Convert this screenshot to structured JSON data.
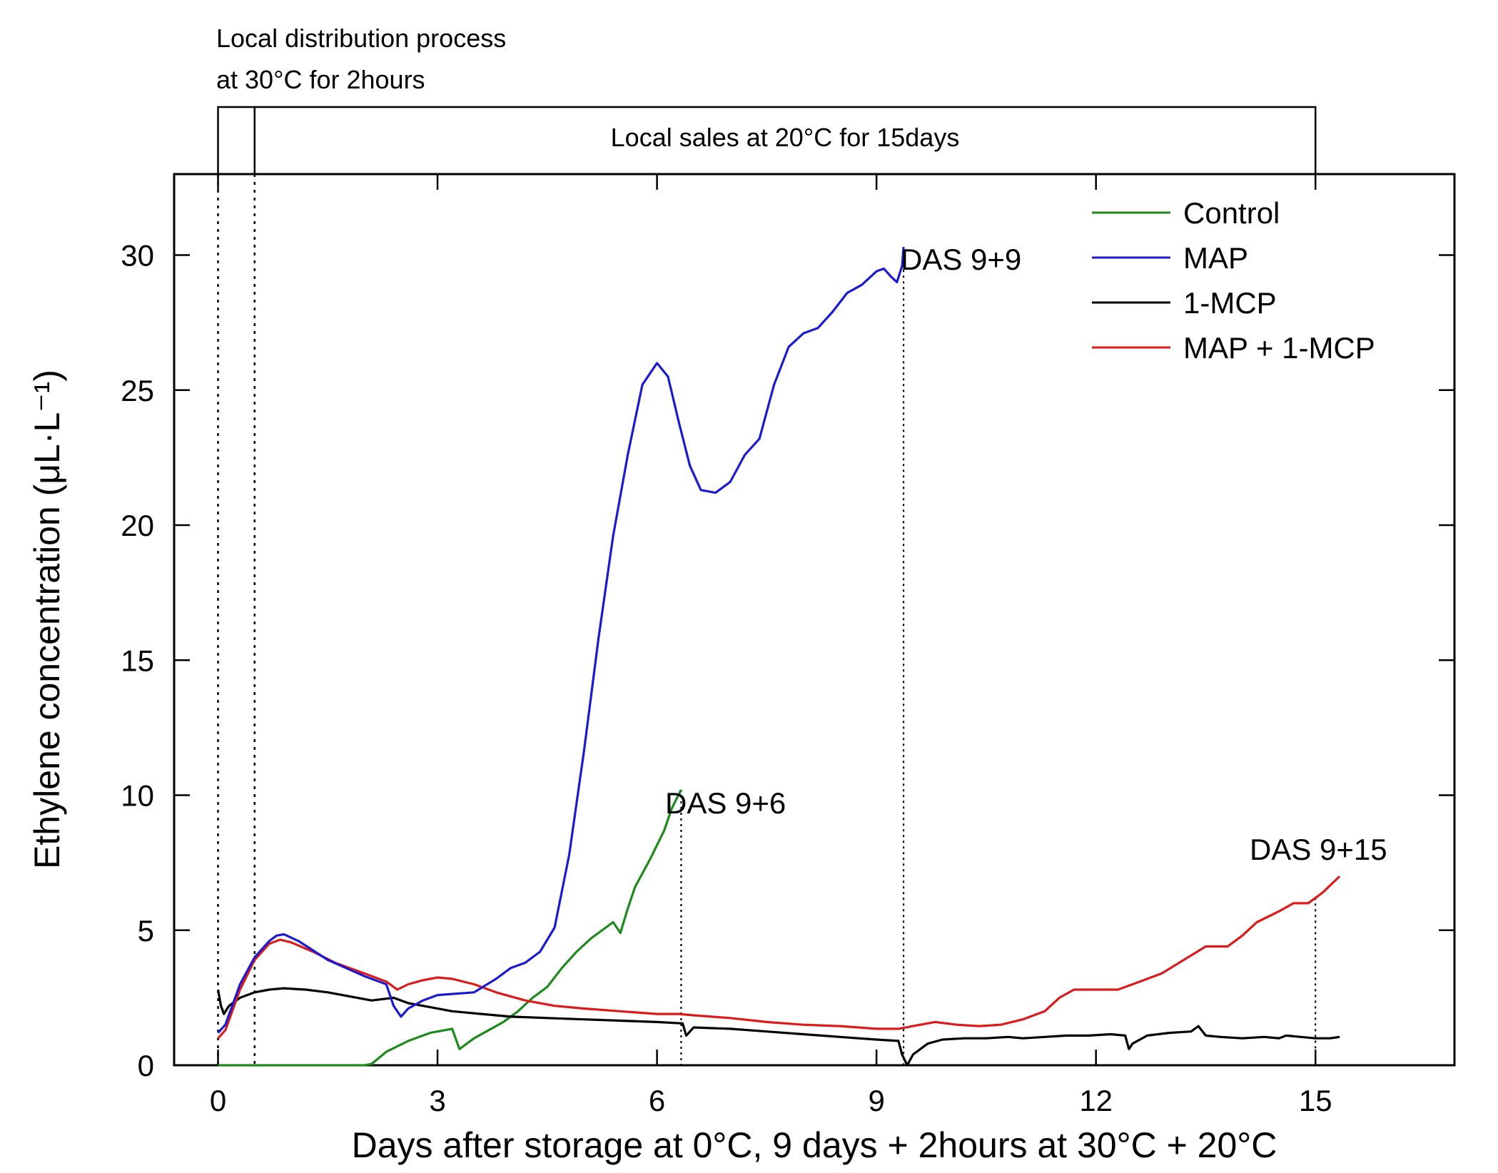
{
  "chart_data": {
    "type": "line",
    "title": "",
    "xlabel": "Days after storage at 0°C, 9 days + 2hours at 30°C + 20°C",
    "ylabel": "Ethylene concentration (μL·L⁻¹)",
    "xlim": [
      -0.6,
      16.9
    ],
    "ylim": [
      0,
      33
    ],
    "x_ticks": [
      0,
      3,
      6,
      9,
      12,
      15
    ],
    "x_tick_labels": [
      "0",
      "3",
      "6",
      "9",
      "12",
      "15"
    ],
    "y_ticks": [
      0,
      5,
      10,
      15,
      20,
      25,
      30
    ],
    "y_tick_labels": [
      "0",
      "5",
      "10",
      "15",
      "20",
      "25",
      "30"
    ],
    "legend": {
      "position": "top-right",
      "entries": [
        "Control",
        "MAP",
        "1-MCP",
        "MAP + 1-MCP"
      ]
    },
    "series": [
      {
        "name": "Control",
        "color": "#1e8a1e",
        "x": [
          0,
          0.5,
          1.0,
          1.5,
          2.0,
          2.1,
          2.3,
          2.6,
          2.9,
          3.2,
          3.3,
          3.4,
          3.5,
          3.7,
          3.9,
          4.1,
          4.3,
          4.5,
          4.7,
          4.9,
          5.1,
          5.3,
          5.4,
          5.5,
          5.6,
          5.7,
          5.9,
          6.1,
          6.2,
          6.33
        ],
        "y": [
          0,
          0,
          0,
          0,
          0,
          0.05,
          0.5,
          0.9,
          1.2,
          1.35,
          0.6,
          0.8,
          1.0,
          1.3,
          1.6,
          2.0,
          2.5,
          2.9,
          3.6,
          4.2,
          4.7,
          5.1,
          5.3,
          4.9,
          5.8,
          6.6,
          7.6,
          8.7,
          9.5,
          10.2
        ]
      },
      {
        "name": "MAP",
        "color": "#1a1ad2",
        "x": [
          0,
          0.1,
          0.3,
          0.5,
          0.7,
          0.8,
          0.9,
          1.1,
          1.5,
          2.0,
          2.3,
          2.4,
          2.5,
          2.6,
          2.8,
          3.0,
          3.5,
          3.8,
          4.0,
          4.2,
          4.4,
          4.6,
          4.8,
          5.0,
          5.2,
          5.4,
          5.6,
          5.8,
          6.0,
          6.15,
          6.3,
          6.45,
          6.6,
          6.8,
          7.0,
          7.2,
          7.4,
          7.6,
          7.8,
          8.0,
          8.2,
          8.4,
          8.6,
          8.8,
          9.0,
          9.1,
          9.2,
          9.28,
          9.35,
          9.37
        ],
        "y": [
          1.2,
          1.5,
          3.0,
          4.0,
          4.6,
          4.8,
          4.85,
          4.6,
          3.9,
          3.3,
          3.0,
          2.2,
          1.8,
          2.1,
          2.4,
          2.6,
          2.7,
          3.2,
          3.6,
          3.8,
          4.2,
          5.1,
          7.8,
          11.6,
          15.8,
          19.6,
          22.6,
          25.2,
          26.0,
          25.5,
          23.8,
          22.2,
          21.3,
          21.2,
          21.6,
          22.6,
          23.2,
          25.2,
          26.6,
          27.1,
          27.3,
          27.9,
          28.6,
          28.9,
          29.4,
          29.5,
          29.2,
          29.0,
          29.6,
          30.3
        ]
      },
      {
        "name": "1-MCP",
        "color": "#000000",
        "x": [
          0,
          0.04,
          0.08,
          0.15,
          0.3,
          0.5,
          0.7,
          0.9,
          1.2,
          1.5,
          1.8,
          2.1,
          2.4,
          2.6,
          2.9,
          3.2,
          3.6,
          4.0,
          4.5,
          5.0,
          5.5,
          6.0,
          6.35,
          6.4,
          6.5,
          7.0,
          7.5,
          8.0,
          8.5,
          9.0,
          9.3,
          9.35,
          9.42,
          9.5,
          9.7,
          9.9,
          10.2,
          10.5,
          10.8,
          11.0,
          11.3,
          11.6,
          11.9,
          12.2,
          12.4,
          12.45,
          12.5,
          12.7,
          13.0,
          13.3,
          13.4,
          13.5,
          13.7,
          14.0,
          14.3,
          14.5,
          14.6,
          14.8,
          15.0,
          15.2,
          15.33
        ],
        "y": [
          2.8,
          2.2,
          1.9,
          2.2,
          2.5,
          2.7,
          2.8,
          2.85,
          2.8,
          2.7,
          2.55,
          2.4,
          2.5,
          2.3,
          2.15,
          2.0,
          1.9,
          1.8,
          1.75,
          1.7,
          1.65,
          1.6,
          1.55,
          1.1,
          1.4,
          1.35,
          1.25,
          1.15,
          1.05,
          0.95,
          0.9,
          0.4,
          0.0,
          0.4,
          0.8,
          0.95,
          1.0,
          1.0,
          1.05,
          1.0,
          1.05,
          1.1,
          1.1,
          1.15,
          1.1,
          0.6,
          0.8,
          1.1,
          1.2,
          1.25,
          1.45,
          1.1,
          1.05,
          1.0,
          1.05,
          1.0,
          1.1,
          1.05,
          1.0,
          1.0,
          1.05
        ]
      },
      {
        "name": "MAP + 1-MCP",
        "color": "#dd1a1a",
        "x": [
          0,
          0.1,
          0.3,
          0.5,
          0.7,
          0.85,
          1.0,
          1.3,
          1.6,
          2.0,
          2.3,
          2.45,
          2.6,
          2.8,
          3.0,
          3.2,
          3.5,
          3.8,
          4.2,
          4.6,
          5.0,
          5.5,
          6.0,
          6.3,
          6.5,
          7.0,
          7.5,
          8.0,
          8.5,
          9.0,
          9.3,
          9.5,
          9.8,
          10.1,
          10.4,
          10.7,
          11.0,
          11.3,
          11.5,
          11.7,
          12.0,
          12.3,
          12.6,
          12.9,
          13.2,
          13.5,
          13.8,
          14.0,
          14.2,
          14.5,
          14.7,
          14.9,
          15.1,
          15.33
        ],
        "y": [
          1.0,
          1.3,
          2.8,
          3.9,
          4.5,
          4.65,
          4.55,
          4.2,
          3.8,
          3.4,
          3.1,
          2.8,
          3.0,
          3.15,
          3.25,
          3.2,
          3.0,
          2.7,
          2.4,
          2.2,
          2.1,
          2.0,
          1.9,
          1.9,
          1.85,
          1.75,
          1.6,
          1.5,
          1.45,
          1.35,
          1.35,
          1.45,
          1.6,
          1.5,
          1.45,
          1.5,
          1.7,
          2.0,
          2.5,
          2.8,
          2.8,
          2.8,
          3.1,
          3.4,
          3.9,
          4.4,
          4.4,
          4.8,
          5.3,
          5.7,
          6.0,
          6.0,
          6.4,
          7.0
        ]
      }
    ],
    "annotations": [
      {
        "text": "DAS 9+6",
        "x": 6.33
      },
      {
        "text": "DAS 9+9",
        "x": 9.37
      },
      {
        "text": "DAS 9+15",
        "x": 15.0
      }
    ],
    "stage_labels": {
      "distribution_line1": "Local distribution process",
      "distribution_line2": "at 30°C for 2hours",
      "sales": "Local sales at 20°C for 15days"
    },
    "stage_boundaries": {
      "start": 0,
      "distribution_end": 0.5,
      "sales_end": 15.0
    }
  }
}
